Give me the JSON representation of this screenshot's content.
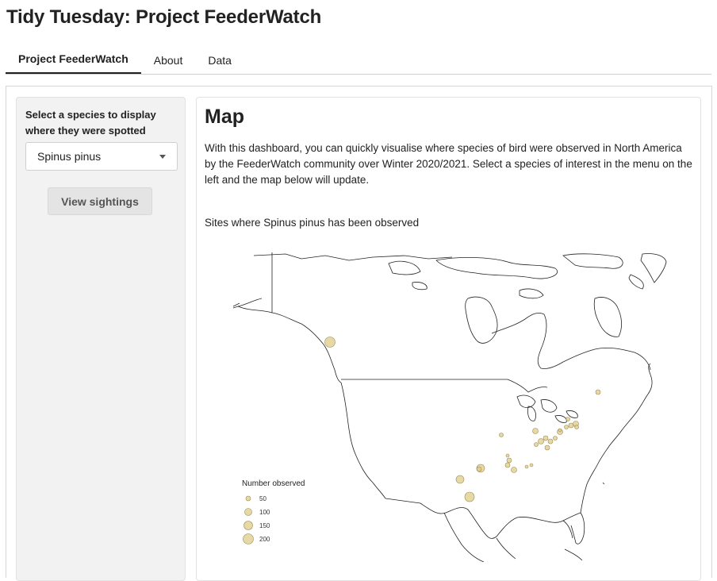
{
  "app": {
    "title": "Tidy Tuesday: Project FeederWatch"
  },
  "tabs": [
    {
      "label": "Project FeederWatch",
      "active": true
    },
    {
      "label": "About",
      "active": false
    },
    {
      "label": "Data",
      "active": false
    }
  ],
  "sidebar": {
    "select_label": "Select a species to display where they were spotted",
    "selected_species": "Spinus pinus",
    "button_label": "View sightings"
  },
  "main": {
    "heading": "Map",
    "intro": "With this dashboard, you can quickly visualise where species of bird were observed in North America by the FeederWatch community over Winter 2020/2021. Select a species of interest in the menu on the left and the map below will update.",
    "plot_caption": "Sites where Spinus pinus has been observed"
  },
  "map": {
    "legend": {
      "title": "Number observed",
      "entries": [
        "50",
        "100",
        "150",
        "200"
      ]
    },
    "point_color": "#ddcc88",
    "point_stroke": "#9a8a50",
    "coastline_color": "#222222"
  }
}
